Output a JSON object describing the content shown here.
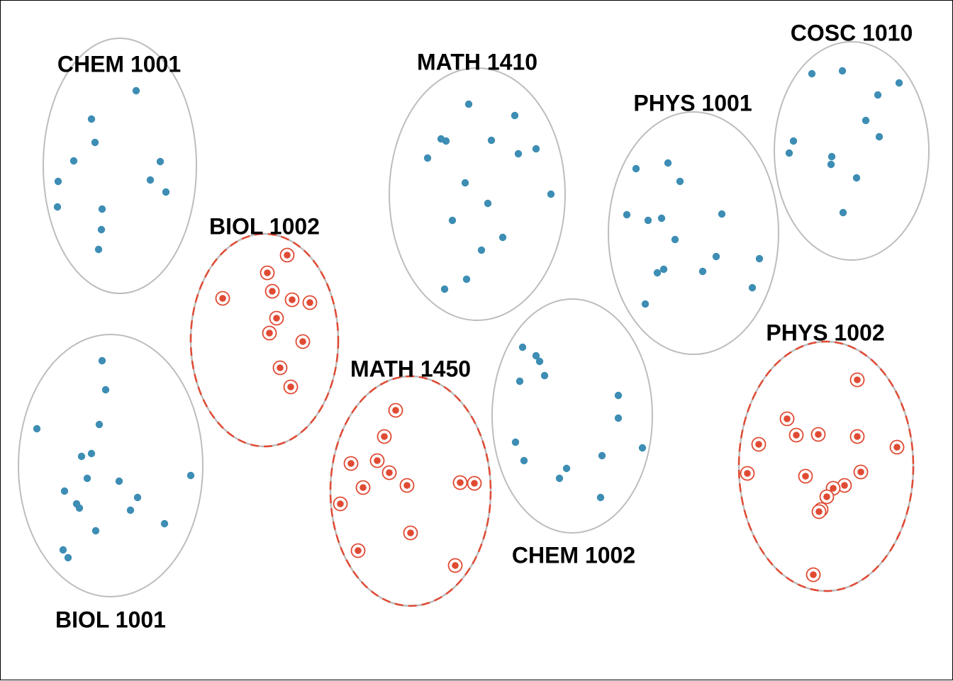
{
  "colors": {
    "unsampled_point": "#3d8db4",
    "sampled_point": "#e04a33",
    "boundary": "#bdbdbd",
    "sampled_boundary": "#e04a33",
    "label": "#000000"
  },
  "clusters": [
    {
      "id": "chem-1001",
      "label": "CHEM 1001",
      "sampled": false
    },
    {
      "id": "biol-1002",
      "label": "BIOL 1002",
      "sampled": true
    },
    {
      "id": "biol-1001",
      "label": "BIOL 1001",
      "sampled": false
    },
    {
      "id": "math-1410",
      "label": "MATH 1410",
      "sampled": false
    },
    {
      "id": "math-1450",
      "label": "MATH 1450",
      "sampled": true
    },
    {
      "id": "chem-1002",
      "label": "CHEM 1002",
      "sampled": false
    },
    {
      "id": "phys-1001",
      "label": "PHYS 1001",
      "sampled": false
    },
    {
      "id": "cosc-1010",
      "label": "COSC 1010",
      "sampled": false
    },
    {
      "id": "phys-1002",
      "label": "PHYS 1002",
      "sampled": true
    }
  ]
}
